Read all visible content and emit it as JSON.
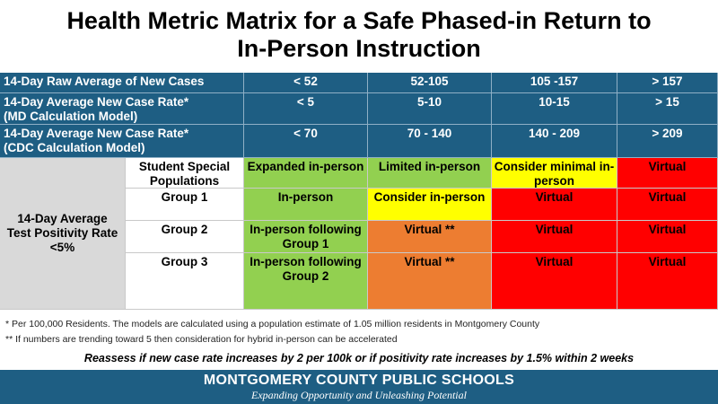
{
  "title_line1": "Health Metric Matrix for a Safe Phased-in Return to",
  "title_line2": "In-Person Instruction",
  "rows": [
    {
      "label": "14-Day Raw Average of New Cases",
      "values": [
        "< 52",
        "52-105",
        "105 -157",
        "> 157"
      ]
    },
    {
      "label_line1": "14-Day Average New Case Rate*",
      "label_line2": "(MD Calculation Model)",
      "values": [
        "< 5",
        "5-10",
        "10-15",
        "> 15"
      ]
    },
    {
      "label_line1": "14-Day Average New Case Rate*",
      "label_line2": "(CDC Calculation Model)",
      "values": [
        "< 70",
        "70 - 140",
        "140 - 209",
        "> 209"
      ]
    }
  ],
  "positivity_label": "14-Day Average Test Positivity Rate <5%",
  "groups": {
    "header": [
      "Student Special Populations",
      "Expanded in-person",
      "Limited in-person",
      "Consider minimal in-person",
      "Virtual"
    ],
    "group1": [
      "Group 1",
      "In-person",
      "Consider in-person",
      "Virtual",
      "Virtual"
    ],
    "group2": [
      "Group 2",
      "In-person following Group 1",
      "Virtual **",
      "Virtual",
      "Virtual"
    ],
    "group3": [
      "Group 3",
      "In-person following Group 2",
      "Virtual **",
      "Virtual",
      "Virtual"
    ]
  },
  "footnote1": "* Per 100,000 Residents.  The models are calculated using a population estimate of 1.05 million residents in Montgomery County",
  "footnote2": "** If numbers are trending toward 5 then consideration for hybrid in-person can be accelerated",
  "reassess": "Reassess if new case rate increases by 2 per 100k or if positivity rate increases by 1.5% within 2 weeks",
  "footer": {
    "org": "MONTGOMERY COUNTY PUBLIC SCHOOLS",
    "tagline": "Expanding Opportunity and Unleashing Potential"
  },
  "colors": {
    "header_blue": "#1e5e83",
    "green": "#92d050",
    "yellow": "#ffff00",
    "orange": "#ed7d31",
    "red": "#ff0000"
  }
}
